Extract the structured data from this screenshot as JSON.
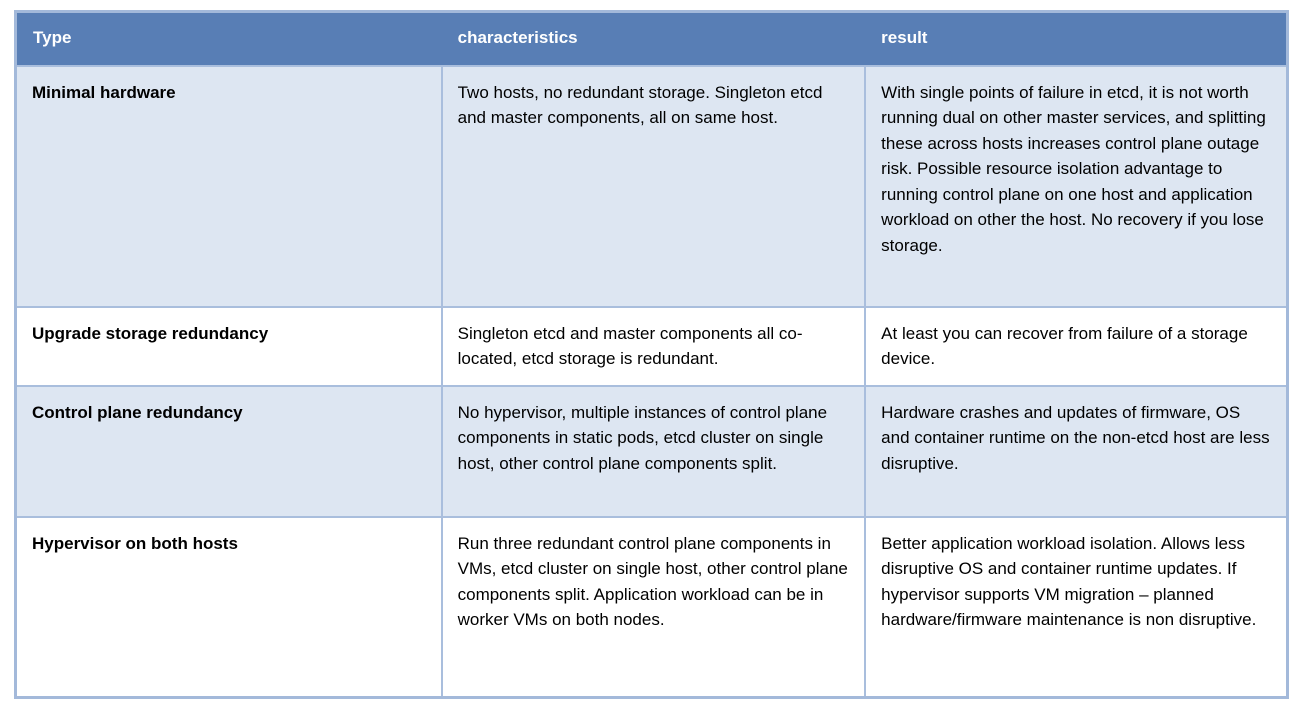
{
  "table": {
    "title": "cluster-redundancy-options",
    "columns": [
      "Type",
      "characteristics",
      "result"
    ],
    "rows": [
      {
        "type": "Minimal hardware",
        "characteristics": "Two hosts, no redundant storage. Singleton etcd and master components, all on same host.",
        "result": "With single points of failure in etcd, it is not worth running dual on other master services, and splitting these across hosts increases control plane outage risk. Possible resource isolation advantage to running control plane on one host and application workload on other the host. No recovery if you lose storage."
      },
      {
        "type": "Upgrade storage redundancy",
        "characteristics": "Singleton etcd and master components all co-located, etcd storage is redundant.",
        "result": "At least you can recover from failure of a storage device."
      },
      {
        "type": "Control plane redundancy",
        "characteristics": "No hypervisor, multiple instances of control plane components in static pods, etcd cluster on single host, other control plane components split.",
        "result": "Hardware crashes and updates of firmware, OS and container runtime on the non-etcd host are less disruptive."
      },
      {
        "type": "Hypervisor on both hosts",
        "characteristics": "Run three redundant control plane components in VMs, etcd cluster on single host, other control plane components split. Application workload can be in worker VMs on both nodes.",
        "result": "Better application workload isolation. Allows less disruptive OS and container runtime updates. If hypervisor supports VM migration – planned hardware/firmware maintenance is non disruptive."
      }
    ],
    "colors": {
      "header_bg": "#587eb5",
      "header_text": "#ffffff",
      "row_alt_bg": "#dde6f2",
      "row_bg": "#ffffff",
      "border": "#a9bedd",
      "outer_border": "#a3b9da",
      "body_text": "#000000"
    }
  }
}
